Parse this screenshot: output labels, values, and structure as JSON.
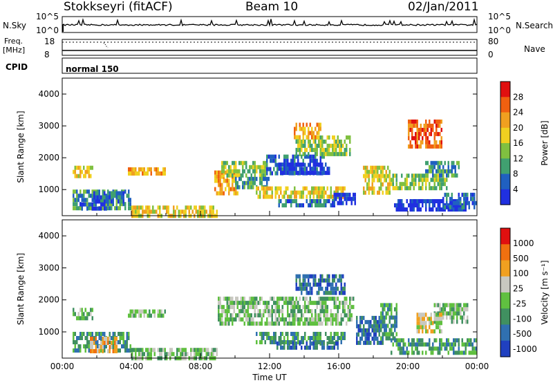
{
  "header": {
    "station": "Stokkseyri (fitACF)",
    "beam": "Beam 10",
    "date": "02/Jan/2011"
  },
  "noise_panel": {
    "left_label": "N.Sky",
    "right_label": "N.Search",
    "left_ticks": [
      "10^5",
      "10^0"
    ],
    "right_ticks": [
      "10^5",
      "10^0"
    ]
  },
  "freq_panel": {
    "left_label_line1": "Freq.",
    "left_label_line2": "[MHz]",
    "right_label": "Nave",
    "left_ticks": [
      "18",
      "8"
    ],
    "right_ticks": [
      "80",
      "0"
    ]
  },
  "cpid_panel": {
    "label": "CPID",
    "mode": "normal 150"
  },
  "chart_data": [
    {
      "type": "heatmap",
      "name": "power",
      "ylabel": "Slant Range [km]",
      "yticks": [
        "4000",
        "3000",
        "2000",
        "1000"
      ],
      "ylim": [
        180,
        4500
      ],
      "xlim": [
        0,
        24
      ],
      "colorbar": {
        "label": "Power [dB]",
        "ticks": [
          "28",
          "24",
          "20",
          "16",
          "12",
          "8",
          "4"
        ],
        "colors": [
          "#2030e0",
          "#2060c0",
          "#40a070",
          "#80c040",
          "#f0d020",
          "#f0a020",
          "#f06010",
          "#e01010"
        ]
      },
      "echo_regions": [
        {
          "t0": 0.6,
          "t1": 1.8,
          "r0": 1450,
          "r1": 1750,
          "level": 3
        },
        {
          "t0": 0.6,
          "t1": 4.0,
          "r0": 380,
          "r1": 1000,
          "level": 5
        },
        {
          "t0": 1.8,
          "t1": 3.6,
          "r0": 600,
          "r1": 950,
          "level": 6
        },
        {
          "t0": 1.0,
          "t1": 2.6,
          "r0": 400,
          "r1": 600,
          "level": 7
        },
        {
          "t0": 3.8,
          "t1": 6.0,
          "r0": 1480,
          "r1": 1700,
          "level": 2
        },
        {
          "t0": 4.0,
          "t1": 9.0,
          "r0": 200,
          "r1": 500,
          "level": 3
        },
        {
          "t0": 8.8,
          "t1": 10.2,
          "r0": 900,
          "r1": 1600,
          "level": 2
        },
        {
          "t0": 9.2,
          "t1": 11.8,
          "r0": 1500,
          "r1": 1900,
          "level": 4
        },
        {
          "t0": 10.0,
          "t1": 12.0,
          "r0": 1100,
          "r1": 1400,
          "level": 5
        },
        {
          "t0": 11.8,
          "t1": 15.2,
          "r0": 1450,
          "r1": 2100,
          "level": 6
        },
        {
          "t0": 12.5,
          "t1": 15.5,
          "r0": 1550,
          "r1": 1850,
          "level": 7
        },
        {
          "t0": 11.2,
          "t1": 16.4,
          "r0": 800,
          "r1": 1100,
          "level": 3
        },
        {
          "t0": 13.5,
          "t1": 16.6,
          "r0": 2100,
          "r1": 2700,
          "level": 4
        },
        {
          "t0": 12.4,
          "t1": 15.8,
          "r0": 480,
          "r1": 700,
          "level": 6
        },
        {
          "t0": 15.6,
          "t1": 17.0,
          "r0": 550,
          "r1": 900,
          "level": 7
        },
        {
          "t0": 17.4,
          "t1": 19.0,
          "r0": 900,
          "r1": 1750,
          "level": 3
        },
        {
          "t0": 19.0,
          "t1": 22.4,
          "r0": 1100,
          "r1": 1500,
          "level": 4
        },
        {
          "t0": 19.2,
          "t1": 23.4,
          "r0": 350,
          "r1": 700,
          "level": 7
        },
        {
          "t0": 21.0,
          "t1": 23.0,
          "r0": 1450,
          "r1": 1900,
          "level": 5
        },
        {
          "t0": 22.0,
          "t1": 24.0,
          "r0": 500,
          "r1": 900,
          "level": 6
        },
        {
          "t0": 20.0,
          "t1": 22.0,
          "r0": 2300,
          "r1": 3200,
          "level": 1
        },
        {
          "t0": 13.4,
          "t1": 15.0,
          "r0": 2600,
          "r1": 3100,
          "level": 2
        }
      ]
    },
    {
      "type": "heatmap",
      "name": "velocity",
      "ylabel": "Slant Range [km]",
      "yticks": [
        "4000",
        "3000",
        "2000",
        "1000"
      ],
      "ylim": [
        180,
        4500
      ],
      "xlim": [
        0,
        24
      ],
      "xlabel": "Time UT",
      "xticks": [
        "00:00",
        "04:00",
        "08:00",
        "12:00",
        "16:00",
        "20:00",
        "00:00"
      ],
      "colorbar": {
        "label": "Velocity [m s⁻¹]",
        "ticks": [
          "1000",
          "500",
          "100",
          "25",
          "-25",
          "-100",
          "-500",
          "-1000"
        ],
        "colors": [
          "#2040c0",
          "#3070b0",
          "#409060",
          "#60c040",
          "#c8c8c0",
          "#f0a020",
          "#f07010",
          "#e01010"
        ]
      },
      "echo_regions": [
        {
          "t0": 0.6,
          "t1": 1.8,
          "r0": 1450,
          "r1": 1750,
          "level": 4
        },
        {
          "t0": 0.6,
          "t1": 4.0,
          "r0": 380,
          "r1": 1000,
          "level": 5
        },
        {
          "t0": 1.6,
          "t1": 3.2,
          "r0": 350,
          "r1": 850,
          "level": 2
        },
        {
          "t0": 3.8,
          "t1": 6.0,
          "r0": 1480,
          "r1": 1700,
          "level": 4
        },
        {
          "t0": 4.0,
          "t1": 9.0,
          "r0": 200,
          "r1": 500,
          "level": 4
        },
        {
          "t0": 9.0,
          "t1": 16.8,
          "r0": 1300,
          "r1": 2100,
          "level": 4
        },
        {
          "t0": 11.2,
          "t1": 16.4,
          "r0": 700,
          "r1": 1000,
          "level": 5
        },
        {
          "t0": 12.4,
          "t1": 16.0,
          "r0": 480,
          "r1": 700,
          "level": 6
        },
        {
          "t0": 17.0,
          "t1": 18.6,
          "r0": 700,
          "r1": 1500,
          "level": 6
        },
        {
          "t0": 18.4,
          "t1": 19.4,
          "r0": 800,
          "r1": 1900,
          "level": 5
        },
        {
          "t0": 19.0,
          "t1": 24.0,
          "r0": 350,
          "r1": 800,
          "level": 5
        },
        {
          "t0": 21.5,
          "t1": 23.5,
          "r0": 1350,
          "r1": 1900,
          "level": 4
        },
        {
          "t0": 13.5,
          "t1": 16.4,
          "r0": 2200,
          "r1": 2800,
          "level": 6
        },
        {
          "t0": 20.5,
          "t1": 22.0,
          "r0": 1000,
          "r1": 1600,
          "level": 3
        }
      ]
    }
  ]
}
